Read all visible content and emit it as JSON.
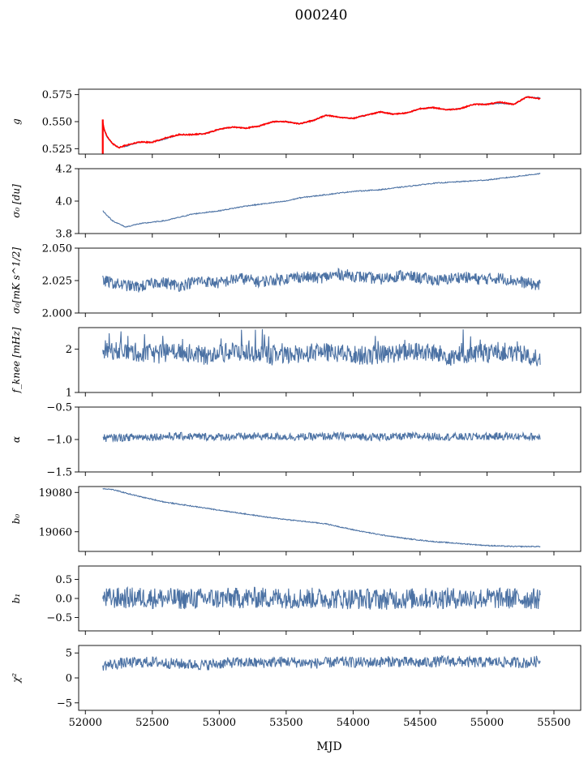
{
  "title": "000240",
  "xlabel": "MJD",
  "colors": {
    "series": "#4c72a4",
    "overlay": "#ff0000",
    "axis": "#000000"
  },
  "xlim": [
    51950,
    55700
  ],
  "xticks": [
    52000,
    52500,
    53000,
    53500,
    54000,
    54500,
    55000,
    55500
  ],
  "chart_data": [
    {
      "type": "line",
      "ylabel": "g",
      "ylim": [
        0.52,
        0.58
      ],
      "yticks": [
        0.525,
        0.55,
        0.575
      ],
      "ytick_labels": [
        "0.525",
        "0.550",
        "0.575"
      ],
      "series": [
        {
          "color": "#4c72a4",
          "x": [
            52130,
            52140,
            52160,
            52200,
            52250,
            52300,
            52400,
            52500,
            52600,
            52700,
            52800,
            52900,
            53000,
            53100,
            53200,
            53300,
            53400,
            53500,
            53600,
            53700,
            53800,
            53900,
            54000,
            54100,
            54200,
            54300,
            54400,
            54500,
            54600,
            54700,
            54800,
            54900,
            55000,
            55100,
            55200,
            55300,
            55400
          ],
          "y": [
            0.547,
            0.542,
            0.536,
            0.53,
            0.526,
            0.527,
            0.531,
            0.531,
            0.534,
            0.538,
            0.538,
            0.539,
            0.543,
            0.545,
            0.544,
            0.546,
            0.55,
            0.55,
            0.548,
            0.551,
            0.556,
            0.554,
            0.553,
            0.556,
            0.559,
            0.557,
            0.558,
            0.562,
            0.563,
            0.561,
            0.562,
            0.566,
            0.566,
            0.567,
            0.566,
            0.573,
            0.572
          ]
        },
        {
          "color": "#ff0000",
          "x": [
            52130,
            52140,
            52160,
            52200,
            52250,
            52300,
            52400,
            52500,
            52600,
            52700,
            52800,
            52900,
            53000,
            53100,
            53200,
            53300,
            53400,
            53500,
            53600,
            53700,
            53800,
            53900,
            54000,
            54100,
            54200,
            54300,
            54400,
            54500,
            54600,
            54700,
            54800,
            54900,
            55000,
            55100,
            55200,
            55300,
            55400
          ],
          "y": [
            0.549,
            0.543,
            0.537,
            0.53,
            0.526,
            0.528,
            0.531,
            0.531,
            0.535,
            0.538,
            0.538,
            0.539,
            0.543,
            0.545,
            0.544,
            0.546,
            0.55,
            0.55,
            0.548,
            0.551,
            0.556,
            0.554,
            0.553,
            0.556,
            0.559,
            0.557,
            0.558,
            0.562,
            0.563,
            0.561,
            0.562,
            0.566,
            0.566,
            0.568,
            0.566,
            0.573,
            0.571
          ]
        }
      ]
    },
    {
      "type": "line",
      "ylabel": "σ₀ [du]",
      "ylim": [
        3.8,
        4.2
      ],
      "yticks": [
        3.8,
        4.0,
        4.2
      ],
      "ytick_labels": [
        "3.8",
        "4.0",
        "4.2"
      ],
      "series": [
        {
          "color": "#4c72a4",
          "x": [
            52130,
            52200,
            52300,
            52400,
            52500,
            52600,
            52700,
            52800,
            53000,
            53200,
            53400,
            53500,
            53600,
            53800,
            54000,
            54200,
            54400,
            54600,
            54800,
            55000,
            55200,
            55400
          ],
          "y": [
            3.94,
            3.88,
            3.84,
            3.86,
            3.87,
            3.88,
            3.9,
            3.92,
            3.94,
            3.97,
            3.99,
            4.0,
            4.02,
            4.04,
            4.06,
            4.07,
            4.09,
            4.11,
            4.12,
            4.13,
            4.15,
            4.17
          ]
        }
      ]
    },
    {
      "type": "line",
      "ylabel": "σ₀[mK s^1/2]",
      "ylim": [
        2.0,
        2.05
      ],
      "yticks": [
        2.0,
        2.025,
        2.05
      ],
      "ytick_labels": [
        "2.000",
        "2.025",
        "2.050"
      ],
      "series": [
        {
          "color": "#4c72a4",
          "x": [
            52130,
            52250,
            52400,
            52550,
            52700,
            52850,
            53000,
            53150,
            53300,
            53450,
            53600,
            53750,
            53900,
            54050,
            54200,
            54350,
            54500,
            54650,
            54800,
            54950,
            55100,
            55250,
            55400
          ],
          "y": [
            2.025,
            2.022,
            2.02,
            2.024,
            2.021,
            2.025,
            2.023,
            2.027,
            2.024,
            2.026,
            2.028,
            2.027,
            2.03,
            2.028,
            2.026,
            2.029,
            2.027,
            2.025,
            2.028,
            2.026,
            2.027,
            2.024,
            2.021
          ]
        }
      ]
    },
    {
      "type": "line",
      "ylabel": "f_knee [mHz]",
      "ylim": [
        1,
        2.5
      ],
      "yticks": [
        1,
        2
      ],
      "ytick_labels": [
        "1",
        "2"
      ],
      "series": [
        {
          "color": "#4c72a4",
          "x": [
            52130,
            52300,
            52500,
            52700,
            52900,
            53100,
            53300,
            53500,
            53700,
            53900,
            54100,
            54300,
            54500,
            54700,
            54900,
            55100,
            55300,
            55400
          ],
          "y": [
            2.0,
            1.95,
            1.9,
            1.95,
            1.85,
            1.95,
            1.9,
            1.85,
            1.95,
            1.9,
            1.85,
            1.9,
            1.95,
            1.85,
            1.9,
            1.95,
            1.85,
            1.8
          ]
        }
      ]
    },
    {
      "type": "line",
      "ylabel": "α",
      "ylim": [
        -1.5,
        -0.5
      ],
      "yticks": [
        -1.5,
        -1.0,
        -0.5
      ],
      "ytick_labels": [
        "−1.5",
        "−1.0",
        "−0.5"
      ],
      "series": [
        {
          "color": "#4c72a4",
          "x": [
            52130,
            52400,
            52700,
            53000,
            53300,
            53600,
            53900,
            54200,
            54500,
            54800,
            55100,
            55400
          ],
          "y": [
            -0.98,
            -0.96,
            -0.95,
            -0.96,
            -0.95,
            -0.96,
            -0.95,
            -0.96,
            -0.95,
            -0.96,
            -0.95,
            -0.96
          ]
        }
      ]
    },
    {
      "type": "line",
      "ylabel": "b₀",
      "ylim": [
        19050,
        19083
      ],
      "yticks": [
        19060,
        19080
      ],
      "ytick_labels": [
        "19060",
        "19080"
      ],
      "series": [
        {
          "color": "#4c72a4",
          "x": [
            52130,
            52200,
            52400,
            52600,
            52800,
            53000,
            53200,
            53400,
            53600,
            53800,
            54000,
            54200,
            54400,
            54600,
            54800,
            55000,
            55200,
            55400
          ],
          "y": [
            19082,
            19081.5,
            19078,
            19075,
            19073,
            19071,
            19069,
            19067,
            19065.5,
            19064,
            19061,
            19058.5,
            19056.5,
            19055,
            19054,
            19053,
            19052.5,
            19052.5
          ]
        }
      ]
    },
    {
      "type": "line",
      "ylabel": "b₁",
      "ylim": [
        -0.85,
        0.85
      ],
      "yticks": [
        -0.5,
        0.0,
        0.5
      ],
      "ytick_labels": [
        "−0.5",
        "0.0",
        "0.5"
      ],
      "series": [
        {
          "color": "#4c72a4",
          "x": [
            52130,
            52400,
            52700,
            53000,
            53300,
            53600,
            53900,
            54200,
            54500,
            54800,
            55100,
            55400
          ],
          "y": [
            0.0,
            0.02,
            -0.01,
            0.0,
            0.02,
            0.01,
            0.0,
            -0.02,
            0.0,
            0.01,
            0.0,
            -0.01
          ]
        }
      ]
    },
    {
      "type": "line",
      "ylabel": "χ²",
      "ylim": [
        -6.5,
        6.5
      ],
      "yticks": [
        -5,
        0,
        5
      ],
      "ytick_labels": [
        "−5",
        "0",
        "5"
      ],
      "series": [
        {
          "color": "#4c72a4",
          "x": [
            52130,
            52300,
            52500,
            52700,
            52900,
            53100,
            53300,
            53500,
            53700,
            53900,
            54100,
            54300,
            54500,
            54700,
            54900,
            55100,
            55300,
            55400
          ],
          "y": [
            2.5,
            3.0,
            3.2,
            2.8,
            2.6,
            3.1,
            3.0,
            3.3,
            2.9,
            3.2,
            3.1,
            3.3,
            3.0,
            3.4,
            3.1,
            3.2,
            3.0,
            3.5
          ]
        }
      ]
    }
  ]
}
